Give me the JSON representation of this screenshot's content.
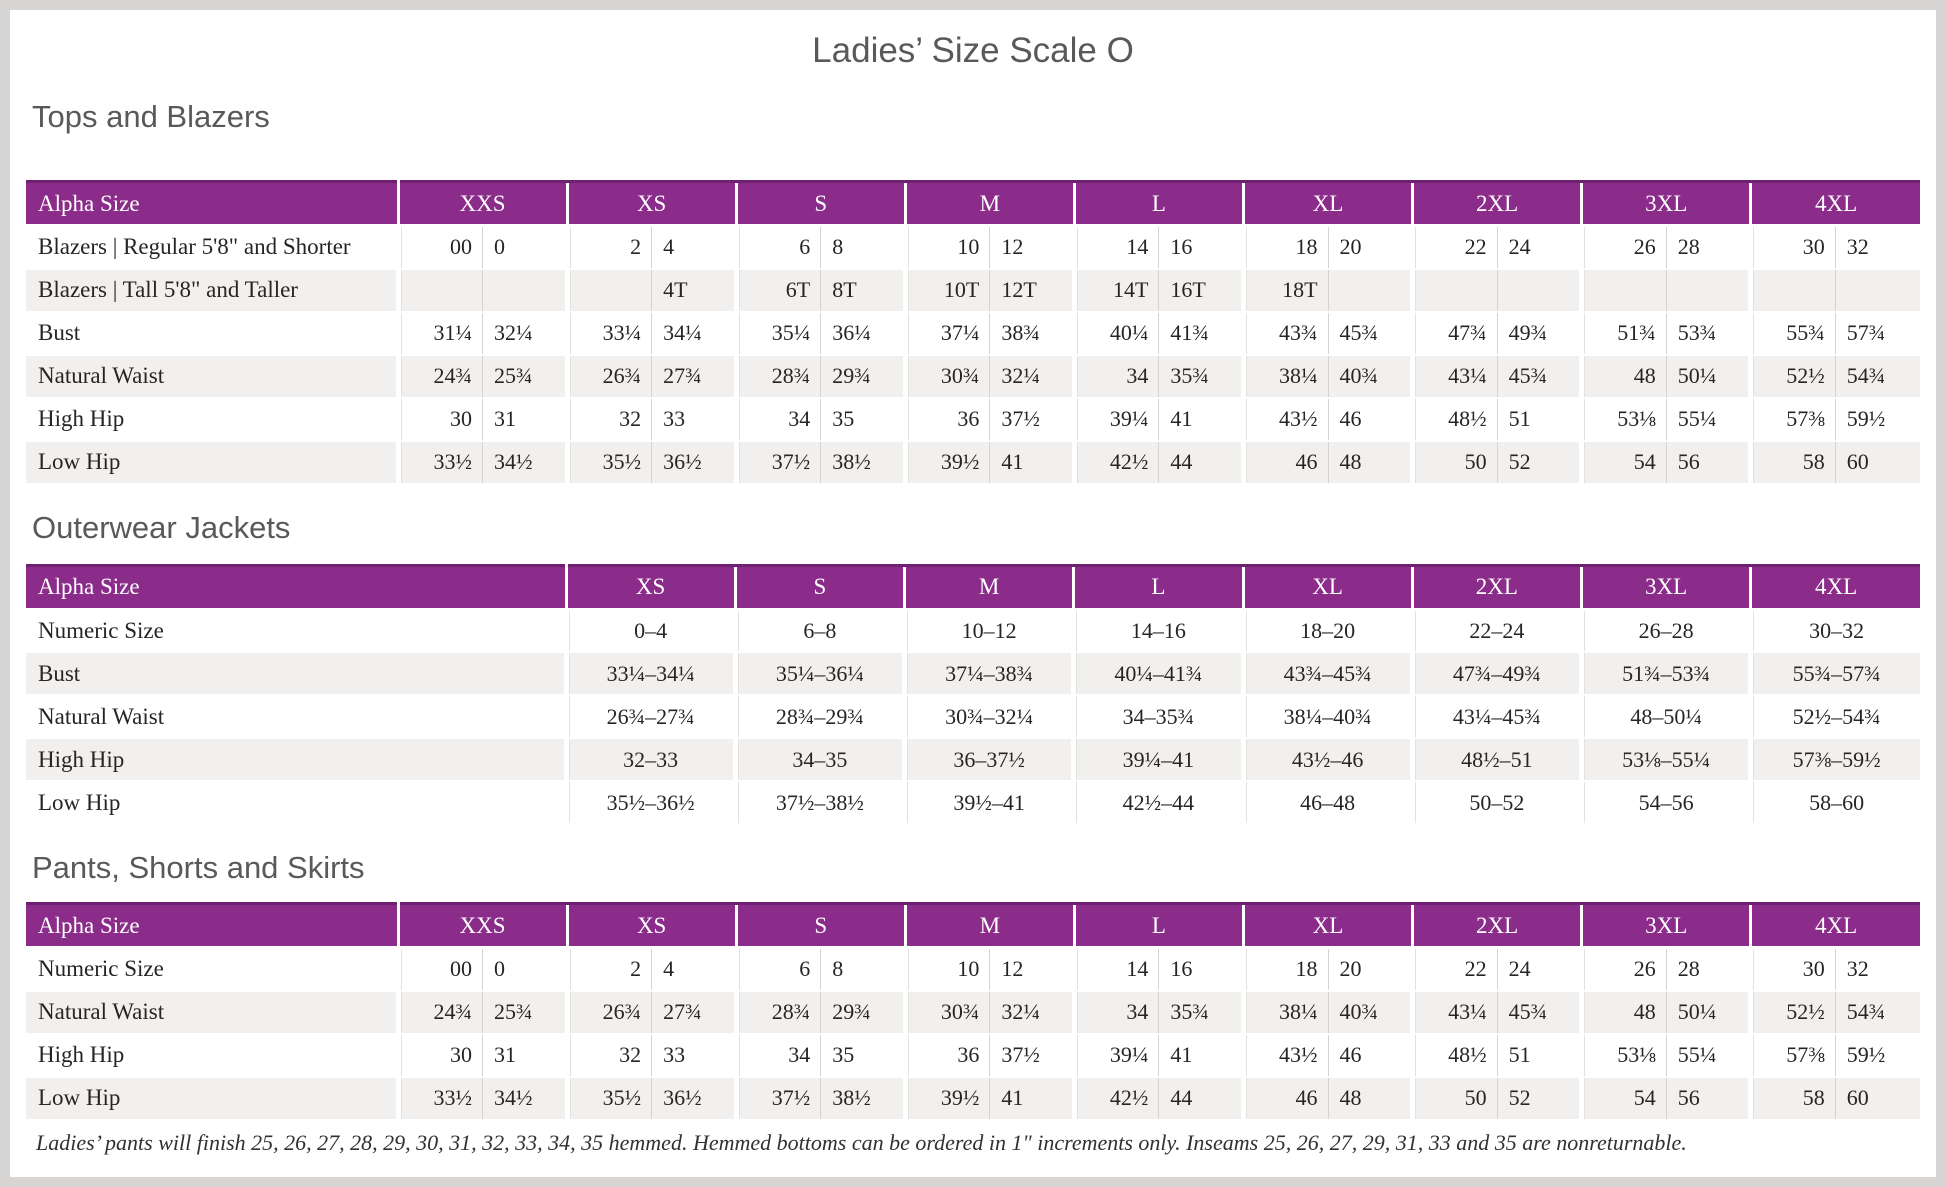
{
  "page": {
    "title": "Ladies’ Size Scale O",
    "footnote": "Ladies’ pants will finish 25, 26, 27, 28, 29, 30, 31, 32, 33, 34, 35 hemmed. Hemmed bottoms can be ordered in 1\" increments only. Inseams 25, 26, 27, 29, 31, 33 and 35 are nonreturnable.",
    "colors": {
      "header_bg": "#8b2b8a",
      "header_top_edge": "#6f2171",
      "stripe": "#f2f0ee",
      "heading_text": "#595959",
      "cell_text": "#272522",
      "frame": "#d7d5d3"
    }
  },
  "tables": [
    {
      "heading": "Tops and Blazers",
      "layout": "paired",
      "corner_label": "Alpha Size",
      "groups": [
        "XXS",
        "XS",
        "S",
        "M",
        "L",
        "XL",
        "2XL",
        "3XL",
        "4XL"
      ],
      "rows": [
        {
          "label": "Blazers | Regular 5'8\" and Shorter",
          "cells": [
            "00",
            "0",
            "2",
            "4",
            "6",
            "8",
            "10",
            "12",
            "14",
            "16",
            "18",
            "20",
            "22",
            "24",
            "26",
            "28",
            "30",
            "32"
          ]
        },
        {
          "label": "Blazers | Tall 5'8\" and Taller",
          "cells": [
            "",
            "",
            "",
            "4T",
            "6T",
            "8T",
            "10T",
            "12T",
            "14T",
            "16T",
            "18T",
            "",
            "",
            "",
            "",
            "",
            "",
            ""
          ]
        },
        {
          "label": "Bust",
          "cells": [
            "31¼",
            "32¼",
            "33¼",
            "34¼",
            "35¼",
            "36¼",
            "37¼",
            "38¾",
            "40¼",
            "41¾",
            "43¾",
            "45¾",
            "47¾",
            "49¾",
            "51¾",
            "53¾",
            "55¾",
            "57¾"
          ]
        },
        {
          "label": "Natural Waist",
          "cells": [
            "24¾",
            "25¾",
            "26¾",
            "27¾",
            "28¾",
            "29¾",
            "30¾",
            "32¼",
            "34",
            "35¾",
            "38¼",
            "40¾",
            "43¼",
            "45¾",
            "48",
            "50¼",
            "52½",
            "54¾"
          ]
        },
        {
          "label": "High Hip",
          "cells": [
            "30",
            "31",
            "32",
            "33",
            "34",
            "35",
            "36",
            "37½",
            "39¼",
            "41",
            "43½",
            "46",
            "48½",
            "51",
            "53⅛",
            "55¼",
            "57⅜",
            "59½"
          ]
        },
        {
          "label": "Low Hip",
          "cells": [
            "33½",
            "34½",
            "35½",
            "36½",
            "37½",
            "38½",
            "39½",
            "41",
            "42½",
            "44",
            "46",
            "48",
            "50",
            "52",
            "54",
            "56",
            "58",
            "60"
          ]
        }
      ]
    },
    {
      "heading": "Outerwear Jackets",
      "layout": "range",
      "corner_label": "Alpha Size",
      "groups": [
        "XS",
        "S",
        "M",
        "L",
        "XL",
        "2XL",
        "3XL",
        "4XL"
      ],
      "rows": [
        {
          "label": "Numeric Size",
          "cells": [
            "0–4",
            "6–8",
            "10–12",
            "14–16",
            "18–20",
            "22–24",
            "26–28",
            "30–32"
          ]
        },
        {
          "label": "Bust",
          "cells": [
            "33¼–34¼",
            "35¼–36¼",
            "37¼–38¾",
            "40¼–41¾",
            "43¾–45¾",
            "47¾–49¾",
            "51¾–53¾",
            "55¾–57¾"
          ]
        },
        {
          "label": "Natural Waist",
          "cells": [
            "26¾–27¾",
            "28¾–29¾",
            "30¾–32¼",
            "34–35¾",
            "38¼–40¾",
            "43¼–45¾",
            "48–50¼",
            "52½–54¾"
          ]
        },
        {
          "label": "High Hip",
          "cells": [
            "32–33",
            "34–35",
            "36–37½",
            "39¼–41",
            "43½–46",
            "48½–51",
            "53⅛–55¼",
            "57⅜–59½"
          ]
        },
        {
          "label": "Low Hip",
          "cells": [
            "35½–36½",
            "37½–38½",
            "39½–41",
            "42½–44",
            "46–48",
            "50–52",
            "54–56",
            "58–60"
          ]
        }
      ]
    },
    {
      "heading": "Pants, Shorts and Skirts",
      "layout": "paired",
      "corner_label": "Alpha Size",
      "groups": [
        "XXS",
        "XS",
        "S",
        "M",
        "L",
        "XL",
        "2XL",
        "3XL",
        "4XL"
      ],
      "rows": [
        {
          "label": "Numeric Size",
          "cells": [
            "00",
            "0",
            "2",
            "4",
            "6",
            "8",
            "10",
            "12",
            "14",
            "16",
            "18",
            "20",
            "22",
            "24",
            "26",
            "28",
            "30",
            "32"
          ]
        },
        {
          "label": "Natural Waist",
          "cells": [
            "24¾",
            "25¾",
            "26¾",
            "27¾",
            "28¾",
            "29¾",
            "30¾",
            "32¼",
            "34",
            "35¾",
            "38¼",
            "40¾",
            "43¼",
            "45¾",
            "48",
            "50¼",
            "52½",
            "54¾"
          ]
        },
        {
          "label": "High Hip",
          "cells": [
            "30",
            "31",
            "32",
            "33",
            "34",
            "35",
            "36",
            "37½",
            "39¼",
            "41",
            "43½",
            "46",
            "48½",
            "51",
            "53⅛",
            "55¼",
            "57⅜",
            "59½"
          ]
        },
        {
          "label": "Low Hip",
          "cells": [
            "33½",
            "34½",
            "35½",
            "36½",
            "37½",
            "38½",
            "39½",
            "41",
            "42½",
            "44",
            "46",
            "48",
            "50",
            "52",
            "54",
            "56",
            "58",
            "60"
          ]
        }
      ]
    }
  ]
}
